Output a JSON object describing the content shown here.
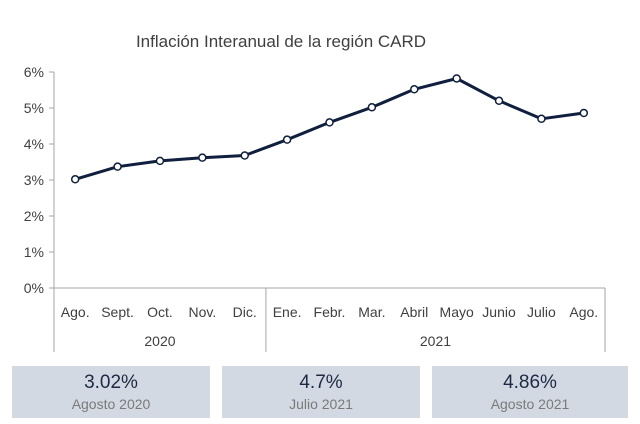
{
  "chart_data": {
    "type": "line",
    "title": "Inflación Interanual de la región CARD",
    "categories": [
      "Ago.",
      "Sept.",
      "Oct.",
      "Nov.",
      "Dic.",
      "Ene.",
      "Febr.",
      "Mar.",
      "Abril",
      "Mayo",
      "Junio",
      "Julio",
      "Ago."
    ],
    "groups": [
      {
        "label": "2020",
        "count": 5
      },
      {
        "label": "2021",
        "count": 8
      }
    ],
    "series": [
      {
        "values": [
          3.02,
          3.37,
          3.53,
          3.62,
          3.68,
          4.12,
          4.6,
          5.02,
          5.52,
          5.82,
          5.2,
          4.7,
          4.86
        ]
      }
    ],
    "ylim": [
      0,
      6
    ],
    "yticks": [
      0,
      1,
      2,
      3,
      4,
      5,
      6
    ],
    "ytick_labels": [
      "0%",
      "1%",
      "2%",
      "3%",
      "4%",
      "5%",
      "6%"
    ],
    "grid": false,
    "line_color": "#0f1f3d",
    "marker_fill": "#ffffff"
  },
  "summary_cards": [
    {
      "value": "3.02%",
      "label": "Agosto 2020"
    },
    {
      "value": "4.7%",
      "label": "Julio 2021"
    },
    {
      "value": "4.86%",
      "label": "Agosto 2021"
    }
  ],
  "colors": {
    "card_bg": "#d3d9e2",
    "axis": "#a6a6a6"
  }
}
